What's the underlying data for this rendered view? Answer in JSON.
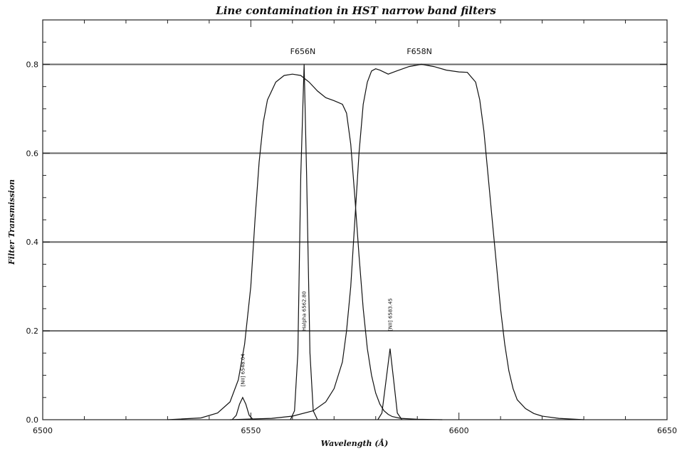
{
  "chart_data": {
    "type": "line",
    "title": "Line contamination in HST narrow band filters",
    "xlabel": "Wavelength (Å)",
    "ylabel": "Filter Transmission",
    "xlim": [
      6500,
      6650
    ],
    "ylim": [
      0,
      0.9
    ],
    "x_ticks": [
      6500,
      6550,
      6600,
      6650
    ],
    "x_tick_labels": [
      "6500",
      "6550",
      "6600",
      "6650"
    ],
    "y_ticks": [
      0.0,
      0.2,
      0.4,
      0.6,
      0.8
    ],
    "y_tick_labels": [
      "0.0",
      "0.2",
      "0.4",
      "0.6",
      "0.8"
    ],
    "hlines": [
      0.2,
      0.4,
      0.6,
      0.8
    ],
    "series": [
      {
        "name": "F656N",
        "x": [
          6530,
          6538,
          6542,
          6545,
          6547,
          6548.5,
          6550,
          6551,
          6552,
          6553,
          6554,
          6556,
          6558,
          6560,
          6562,
          6564,
          6566,
          6568,
          6570,
          6572,
          6573,
          6574,
          6575,
          6576,
          6577,
          6578,
          6579,
          6580,
          6581,
          6582,
          6583,
          6584,
          6586,
          6590,
          6596
        ],
        "y": [
          0.0,
          0.004,
          0.015,
          0.04,
          0.09,
          0.17,
          0.3,
          0.45,
          0.58,
          0.67,
          0.72,
          0.76,
          0.775,
          0.778,
          0.775,
          0.76,
          0.74,
          0.725,
          0.718,
          0.71,
          0.69,
          0.62,
          0.5,
          0.37,
          0.25,
          0.16,
          0.1,
          0.06,
          0.035,
          0.02,
          0.012,
          0.007,
          0.003,
          0.001,
          0.0
        ]
      },
      {
        "name": "F658N",
        "x": [
          6545,
          6555,
          6560,
          6565,
          6568,
          6570,
          6572,
          6573,
          6574,
          6575,
          6576,
          6577,
          6578,
          6579,
          6580,
          6581,
          6583,
          6585,
          6588,
          6591,
          6594,
          6597,
          6600,
          6602,
          6604,
          6605,
          6606,
          6607,
          6608,
          6609,
          6610,
          6611,
          6612,
          6613,
          6614,
          6616,
          6618,
          6620,
          6624,
          6630
        ],
        "y": [
          0.0,
          0.003,
          0.008,
          0.02,
          0.04,
          0.07,
          0.13,
          0.2,
          0.3,
          0.45,
          0.6,
          0.71,
          0.76,
          0.785,
          0.79,
          0.787,
          0.778,
          0.785,
          0.795,
          0.8,
          0.795,
          0.787,
          0.783,
          0.782,
          0.76,
          0.72,
          0.65,
          0.55,
          0.45,
          0.35,
          0.25,
          0.17,
          0.11,
          0.07,
          0.045,
          0.025,
          0.014,
          0.008,
          0.003,
          0.0
        ]
      },
      {
        "name": "[NII] 6548.04",
        "x": [
          6545.5,
          6546.5,
          6547.3,
          6548.04,
          6548.8,
          6549.6,
          6550.6
        ],
        "y": [
          0.0,
          0.01,
          0.035,
          0.05,
          0.035,
          0.01,
          0.0
        ]
      },
      {
        "name": "Halpha 6562.80",
        "x": [
          6559.5,
          6560.5,
          6561.3,
          6562.0,
          6562.8,
          6563.4,
          6564.2,
          6565.0,
          6566.0
        ],
        "y": [
          0.0,
          0.02,
          0.15,
          0.55,
          0.8,
          0.55,
          0.15,
          0.02,
          0.0
        ]
      },
      {
        "name": "[NII] 6583.45",
        "x": [
          6580.5,
          6581.5,
          6582.5,
          6583.45,
          6584.3,
          6585.2,
          6586.3
        ],
        "y": [
          0.0,
          0.015,
          0.09,
          0.16,
          0.09,
          0.015,
          0.0
        ]
      }
    ],
    "filter_labels": [
      {
        "text": "F656N",
        "x": 6562.5,
        "y": 0.82
      },
      {
        "text": "F658N",
        "x": 6590.5,
        "y": 0.82
      }
    ],
    "line_labels": [
      {
        "text": "[NII] 6548.04",
        "x": 6548.04,
        "y": 0.075
      },
      {
        "text": "Halpha 6562.80",
        "x": 6562.8,
        "y": 0.2
      },
      {
        "text": "[NII] 6583.45",
        "x": 6583.45,
        "y": 0.2
      }
    ]
  }
}
